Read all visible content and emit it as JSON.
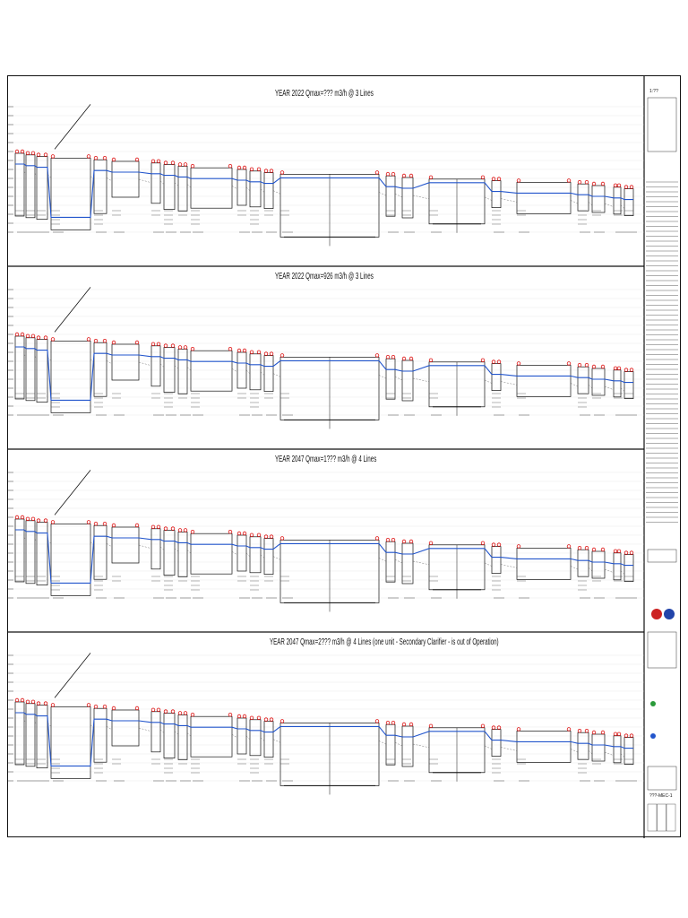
{
  "sheet": {
    "panels": [
      {
        "title": "YEAR 2022 Qmax=??? m3/h @ 3 Lines"
      },
      {
        "title": "YEAR 2022 Qmax=926 m3/h @ 3 Lines"
      },
      {
        "title": "YEAR 2047 Qmax=1??? m3/h @ 4 Lines"
      },
      {
        "title": "YEAR 2047 Qmax=2??? m3/h @ 4 Lines (one unit - Secondary Clarifier - is out of Operation)"
      }
    ]
  },
  "title_block": {
    "scale": "1:??",
    "drawing_no": "???-MEC-1"
  },
  "colors": {
    "water_level": "#2255cc",
    "marker": "#dd1111",
    "line": "#111111"
  }
}
